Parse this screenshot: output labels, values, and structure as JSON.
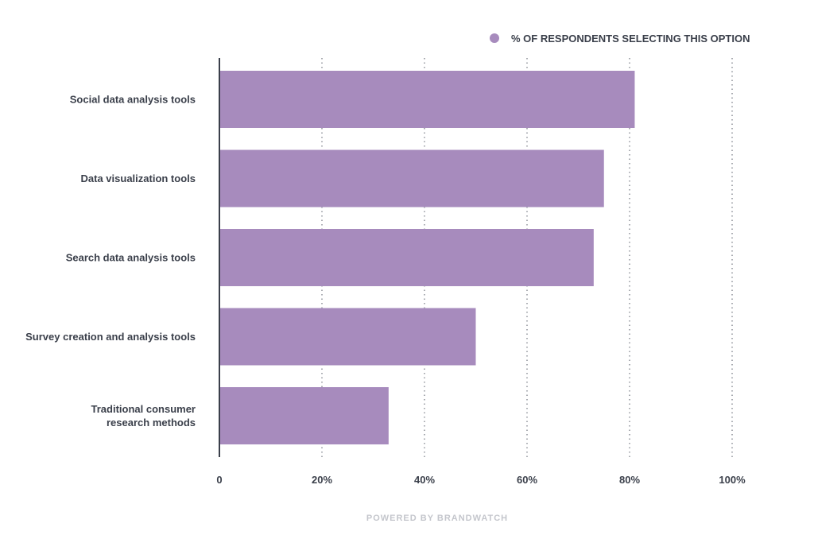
{
  "chart_data": {
    "type": "bar",
    "orientation": "horizontal",
    "categories": [
      "Social data analysis tools",
      "Data visualization tools",
      "Search data analysis tools",
      "Survey creation and analysis tools",
      [
        "Traditional consumer",
        "research methods"
      ]
    ],
    "series": [
      {
        "name": "% OF RESPONDENTS SELECTING THIS OPTION",
        "color": "#a78bbd",
        "values": [
          81,
          75,
          73,
          50,
          33
        ]
      }
    ],
    "xlim": [
      0,
      100
    ],
    "x_ticks": [
      {
        "value": 0,
        "label": "0"
      },
      {
        "value": 20,
        "label": "20%"
      },
      {
        "value": 40,
        "label": "40%"
      },
      {
        "value": 60,
        "label": "60%"
      },
      {
        "value": 80,
        "label": "80%"
      },
      {
        "value": 100,
        "label": "100%"
      }
    ],
    "grid": "vertical-dotted",
    "legend_position": "top-right",
    "title": "",
    "xlabel": "",
    "ylabel": ""
  },
  "footer": {
    "text": "POWERED BY BRANDWATCH"
  },
  "colors": {
    "bar": "#a78bbd",
    "text": "#3a3f4a",
    "axis": "#3a3f4a",
    "grid": "#555a66",
    "footer": "#c4c6cc"
  }
}
